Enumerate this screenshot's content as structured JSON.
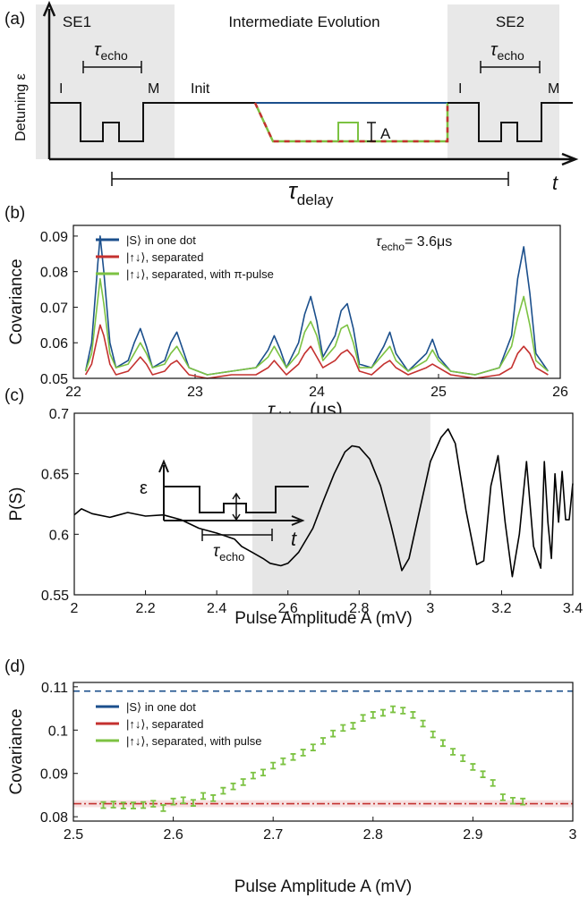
{
  "schematic": {
    "label": "(a)",
    "se1": "SE1",
    "middle": "Intermediate Evolution",
    "se2": "SE2",
    "echo1": {
      "symbol": "τ",
      "sub": "echo"
    },
    "echo2": {
      "symbol": "τ",
      "sub": "echo"
    },
    "i1": "I",
    "m1": "M",
    "init": "Init",
    "i2": "I",
    "m2": "M",
    "amp": "A",
    "ylabel": "Detuning ε",
    "xlabel": "t",
    "delay": {
      "symbol": "τ",
      "sub": "delay"
    }
  },
  "chart_data": [
    {
      "type": "line",
      "label": "(b)",
      "ylabel": "Covariance",
      "xlabel": {
        "symbol": "τ",
        "sub": "delay",
        "tail": " (μs)"
      },
      "annotation": {
        "symbol": "τ",
        "sub": "echo",
        "text": "= 3.6μs"
      },
      "legend": "upper left",
      "xlim": [
        22,
        26
      ],
      "ylim": [
        0.05,
        0.093
      ],
      "xticks": [
        22,
        23,
        24,
        25,
        26
      ],
      "yticks": [
        0.05,
        0.06,
        0.07,
        0.08,
        0.09
      ],
      "x": [
        22.1,
        22.15,
        22.2,
        22.22,
        22.25,
        22.3,
        22.35,
        22.45,
        22.5,
        22.55,
        22.6,
        22.65,
        22.75,
        22.8,
        22.85,
        22.9,
        22.95,
        23.1,
        23.3,
        23.5,
        23.6,
        23.65,
        23.7,
        23.75,
        23.85,
        23.9,
        23.95,
        24.0,
        24.05,
        24.15,
        24.2,
        24.25,
        24.3,
        24.35,
        24.45,
        24.55,
        24.6,
        24.65,
        24.75,
        24.9,
        24.95,
        25.0,
        25.1,
        25.3,
        25.5,
        25.6,
        25.65,
        25.7,
        25.75,
        25.8,
        25.9
      ],
      "series": [
        {
          "name": "|S⟩ in one dot",
          "color": "#1b4f8c",
          "values": [
            0.052,
            0.06,
            0.082,
            0.09,
            0.08,
            0.06,
            0.053,
            0.055,
            0.06,
            0.064,
            0.059,
            0.053,
            0.055,
            0.06,
            0.063,
            0.058,
            0.053,
            0.051,
            0.052,
            0.053,
            0.058,
            0.062,
            0.058,
            0.053,
            0.06,
            0.068,
            0.073,
            0.066,
            0.056,
            0.062,
            0.069,
            0.071,
            0.064,
            0.054,
            0.053,
            0.059,
            0.063,
            0.057,
            0.052,
            0.057,
            0.061,
            0.056,
            0.052,
            0.051,
            0.053,
            0.062,
            0.078,
            0.087,
            0.074,
            0.057,
            0.052
          ]
        },
        {
          "name": "|↑↓⟩, separated",
          "color": "#c4312f",
          "values": [
            0.051,
            0.054,
            0.062,
            0.065,
            0.062,
            0.054,
            0.051,
            0.052,
            0.054,
            0.056,
            0.054,
            0.051,
            0.052,
            0.054,
            0.055,
            0.053,
            0.051,
            0.05,
            0.051,
            0.051,
            0.053,
            0.055,
            0.053,
            0.051,
            0.054,
            0.057,
            0.059,
            0.056,
            0.053,
            0.055,
            0.057,
            0.058,
            0.056,
            0.052,
            0.051,
            0.054,
            0.055,
            0.053,
            0.051,
            0.053,
            0.054,
            0.053,
            0.051,
            0.05,
            0.051,
            0.053,
            0.057,
            0.059,
            0.057,
            0.053,
            0.051
          ]
        },
        {
          "name": "|↑↓⟩, separated, with π-pulse",
          "color": "#7cc242",
          "values": [
            0.052,
            0.057,
            0.072,
            0.078,
            0.071,
            0.057,
            0.053,
            0.054,
            0.057,
            0.06,
            0.057,
            0.053,
            0.054,
            0.057,
            0.059,
            0.056,
            0.053,
            0.051,
            0.052,
            0.053,
            0.056,
            0.059,
            0.056,
            0.053,
            0.057,
            0.063,
            0.066,
            0.062,
            0.055,
            0.059,
            0.064,
            0.065,
            0.06,
            0.053,
            0.053,
            0.057,
            0.059,
            0.055,
            0.052,
            0.055,
            0.058,
            0.055,
            0.052,
            0.051,
            0.053,
            0.059,
            0.067,
            0.073,
            0.065,
            0.055,
            0.052
          ]
        }
      ]
    },
    {
      "type": "line",
      "label": "(c)",
      "ylabel": "P(S)",
      "xlabel": "Pulse Amplitude A (mV)",
      "inset": {
        "ylabel": "ε",
        "xlabel": "t",
        "echo": {
          "symbol": "τ",
          "sub": "echo"
        }
      },
      "highlight": [
        2.5,
        3.0
      ],
      "xlim": [
        2,
        3.4
      ],
      "ylim": [
        0.55,
        0.7
      ],
      "xticks": [
        2,
        2.2,
        2.4,
        2.6,
        2.8,
        3,
        3.2,
        3.4
      ],
      "yticks": [
        0.55,
        0.6,
        0.65,
        0.7
      ],
      "x": [
        2.0,
        2.02,
        2.05,
        2.1,
        2.15,
        2.2,
        2.25,
        2.3,
        2.35,
        2.4,
        2.45,
        2.47,
        2.5,
        2.53,
        2.55,
        2.58,
        2.6,
        2.63,
        2.67,
        2.7,
        2.73,
        2.76,
        2.78,
        2.8,
        2.83,
        2.86,
        2.89,
        2.92,
        2.94,
        2.97,
        3.0,
        3.03,
        3.05,
        3.07,
        3.1,
        3.13,
        3.15,
        3.17,
        3.19,
        3.21,
        3.23,
        3.25,
        3.27,
        3.29,
        3.31,
        3.32,
        3.33,
        3.34,
        3.35,
        3.36,
        3.37,
        3.38,
        3.39,
        3.4
      ],
      "series": [
        {
          "color": "#000000",
          "values": [
            0.616,
            0.621,
            0.617,
            0.614,
            0.618,
            0.615,
            0.616,
            0.612,
            0.605,
            0.601,
            0.596,
            0.59,
            0.585,
            0.58,
            0.576,
            0.574,
            0.576,
            0.585,
            0.605,
            0.628,
            0.65,
            0.668,
            0.673,
            0.672,
            0.662,
            0.64,
            0.607,
            0.57,
            0.58,
            0.62,
            0.66,
            0.68,
            0.687,
            0.675,
            0.62,
            0.575,
            0.578,
            0.64,
            0.665,
            0.61,
            0.565,
            0.6,
            0.66,
            0.59,
            0.572,
            0.66,
            0.61,
            0.58,
            0.65,
            0.61,
            0.652,
            0.612,
            0.612,
            0.642
          ]
        }
      ]
    },
    {
      "type": "errorbar",
      "label": "(d)",
      "ylabel": "Covariance",
      "xlabel": "Pulse Amplitude A (mV)",
      "legend": "upper left",
      "xlim": [
        2.5,
        3
      ],
      "ylim": [
        0.079,
        0.111
      ],
      "xticks": [
        2.5,
        2.6,
        2.7,
        2.8,
        2.9,
        3
      ],
      "yticks": [
        0.08,
        0.09,
        0.1,
        0.11
      ],
      "series": [
        {
          "name": "|S⟩ in one dot",
          "color": "#1b4f8c",
          "dash": "7,5",
          "x": [
            2.5,
            3
          ],
          "values": [
            0.109,
            0.109
          ]
        },
        {
          "name": "|↑↓⟩, separated",
          "color": "#c4312f",
          "dash": "9,3,2,3",
          "x": [
            2.5,
            3
          ],
          "values": [
            0.083,
            0.083
          ],
          "band": [
            0.0822,
            0.0838
          ]
        },
        {
          "name": "|↑↓⟩, separated, with pulse",
          "color": "#7cc242",
          "error": 0.0007,
          "x": [
            2.53,
            2.54,
            2.55,
            2.56,
            2.57,
            2.58,
            2.59,
            2.6,
            2.61,
            2.62,
            2.63,
            2.64,
            2.65,
            2.66,
            2.67,
            2.68,
            2.69,
            2.7,
            2.71,
            2.72,
            2.73,
            2.74,
            2.75,
            2.76,
            2.77,
            2.78,
            2.79,
            2.8,
            2.81,
            2.82,
            2.83,
            2.84,
            2.85,
            2.86,
            2.87,
            2.88,
            2.89,
            2.9,
            2.91,
            2.92,
            2.93,
            2.94,
            2.95
          ],
          "values": [
            0.0827,
            0.0828,
            0.0826,
            0.0826,
            0.0827,
            0.083,
            0.082,
            0.0835,
            0.0838,
            0.0832,
            0.0848,
            0.0843,
            0.086,
            0.087,
            0.088,
            0.0895,
            0.0902,
            0.0918,
            0.0928,
            0.0938,
            0.0948,
            0.096,
            0.0975,
            0.0992,
            0.1005,
            0.101,
            0.1028,
            0.1035,
            0.104,
            0.1048,
            0.1045,
            0.1035,
            0.1015,
            0.099,
            0.097,
            0.095,
            0.0935,
            0.0915,
            0.0898,
            0.0878,
            0.0845,
            0.0837,
            0.0835
          ]
        }
      ]
    }
  ]
}
